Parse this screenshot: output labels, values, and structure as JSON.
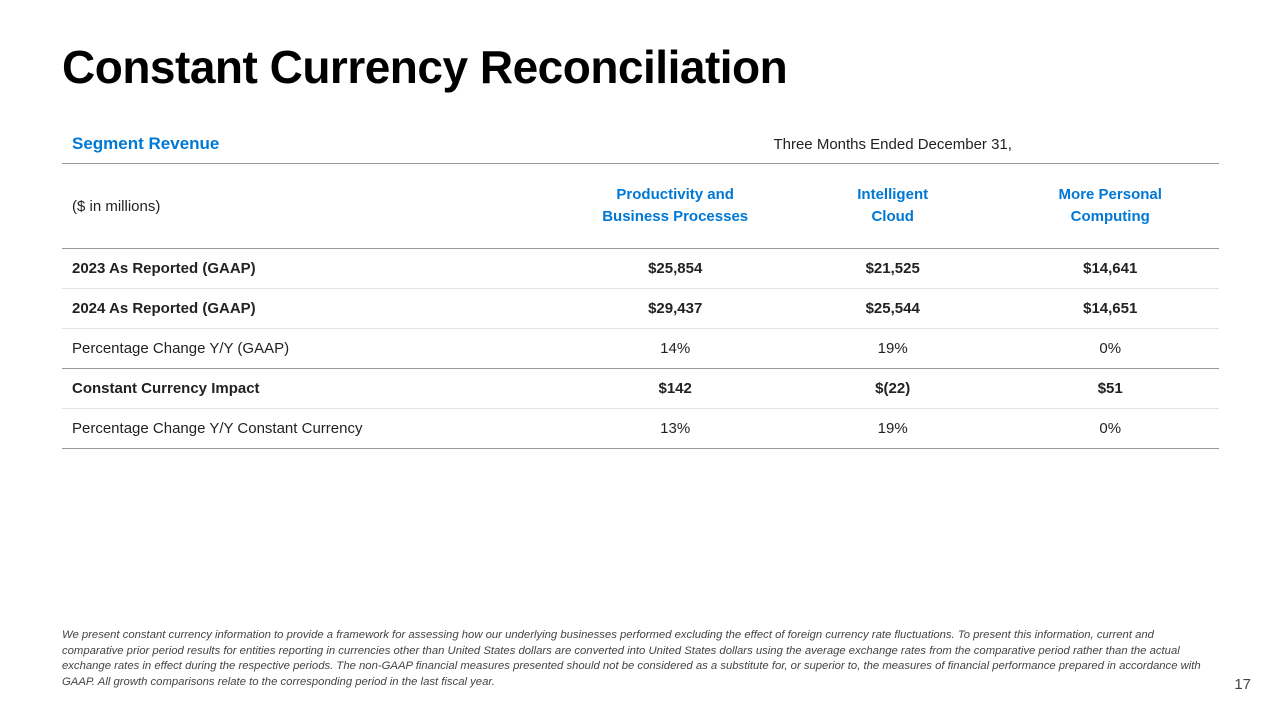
{
  "title": "Constant Currency Reconciliation",
  "table": {
    "section_title": "Segment Revenue",
    "period": "Three Months Ended December 31,",
    "units": "($ in millions)",
    "columns": [
      {
        "line1": "Productivity and",
        "line2": "Business Processes"
      },
      {
        "line1": "Intelligent",
        "line2": "Cloud"
      },
      {
        "line1": "More Personal",
        "line2": "Computing"
      }
    ],
    "rows": [
      {
        "label": "2023 As Reported (GAAP)",
        "values": [
          "$25,854",
          "$21,525",
          "$14,641"
        ]
      },
      {
        "label": "2024 As Reported (GAAP)",
        "values": [
          "$29,437",
          "$25,544",
          "$14,651"
        ]
      },
      {
        "label": "Percentage Change Y/Y (GAAP)",
        "values": [
          "14%",
          "19%",
          "0%"
        ]
      },
      {
        "label": "Constant Currency Impact",
        "values": [
          "$142",
          "$(22)",
          "$51"
        ]
      },
      {
        "label": "Percentage Change Y/Y Constant Currency",
        "values": [
          "13%",
          "19%",
          "0%"
        ]
      }
    ]
  },
  "footnote": "We present constant currency information to provide a framework for assessing how our underlying businesses performed excluding the effect of foreign currency rate fluctuations. To present this information, current and comparative prior period results for entities reporting in currencies other than United States dollars are converted into United States dollars using the average exchange rates from the comparative period rather than the actual exchange rates in effect during the respective periods. The non-GAAP financial measures presented should not be considered as a substitute for, or superior to, the measures of financial performance prepared in accordance with GAAP. All growth comparisons relate to the corresponding period in the last fiscal year.",
  "page_number": "17"
}
